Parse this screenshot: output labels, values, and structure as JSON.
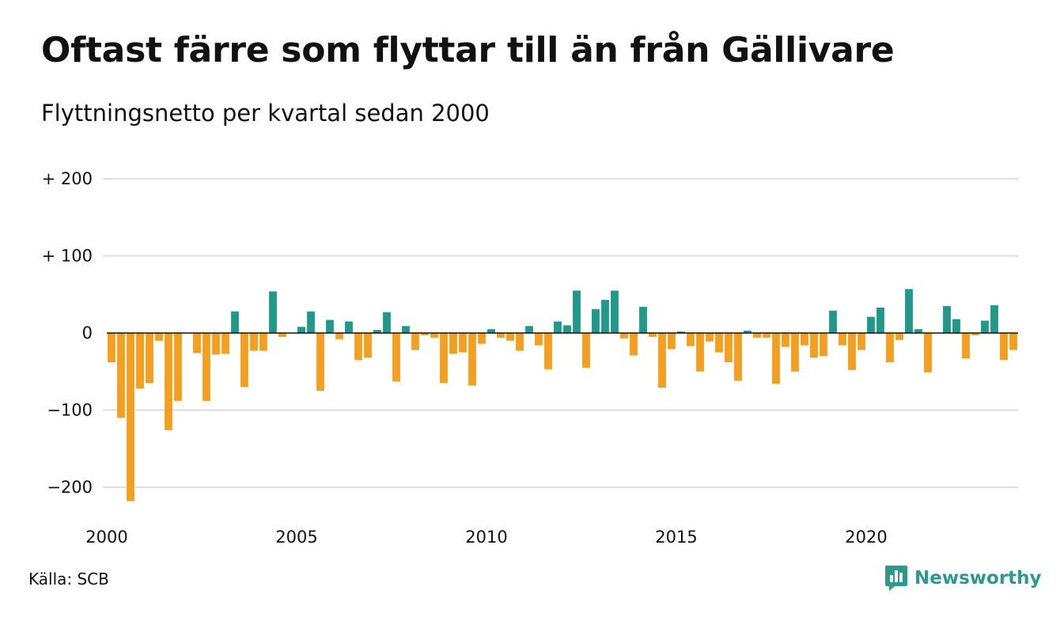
{
  "title": "Oftast färre som flyttar till än från Gällivare",
  "subtitle": "Flyttningsnetto per kvartal sedan 2000",
  "source": "Källa: SCB",
  "brand": {
    "name": "Newsworthy",
    "color": "#2a9a8b",
    "icon": "bar-chart-speech-bubble-icon"
  },
  "colors": {
    "positive": "#1f9a8a",
    "negative": "#f59f1f",
    "grid": "#dedede",
    "axis": "#111111"
  },
  "chart_data": {
    "type": "bar",
    "title": "Oftast färre som flyttar till än från Gällivare",
    "subtitle": "Flyttningsnetto per kvartal sedan 2000",
    "xlabel": "",
    "ylabel": "",
    "ylim": [
      -240,
      220
    ],
    "yticks": [
      200,
      100,
      0,
      -100,
      -200
    ],
    "ytick_labels": [
      "+ 200",
      "+ 100",
      "0",
      "−100",
      "−200"
    ],
    "xticks": [
      2000,
      2005,
      2010,
      2015,
      2020
    ],
    "xtick_labels": [
      "2000",
      "2005",
      "2010",
      "2015",
      "2020"
    ],
    "x_start": 2000,
    "periods_per_year": 4,
    "grid": true,
    "legend": "none",
    "values": [
      -38,
      -110,
      -218,
      -72,
      -65,
      -10,
      -126,
      -88,
      0,
      -26,
      -88,
      -28,
      -27,
      28,
      -70,
      -23,
      -23,
      54,
      -5,
      0,
      8,
      28,
      -75,
      17,
      -8,
      15,
      -35,
      -32,
      4,
      27,
      -63,
      9,
      -22,
      -3,
      -6,
      -65,
      -27,
      -25,
      -68,
      -14,
      5,
      -6,
      -10,
      -23,
      9,
      -16,
      -47,
      15,
      10,
      55,
      -45,
      31,
      43,
      55,
      -7,
      -29,
      34,
      -5,
      -71,
      -21,
      2,
      -17,
      -50,
      -11,
      -25,
      -38,
      -62,
      3,
      -6,
      -6,
      -66,
      -18,
      -50,
      -16,
      -32,
      -30,
      29,
      -16,
      -48,
      -22,
      21,
      33,
      -38,
      -9,
      57,
      5,
      -51,
      0,
      35,
      18,
      -33,
      -3,
      16,
      36,
      -35,
      -22
    ]
  }
}
